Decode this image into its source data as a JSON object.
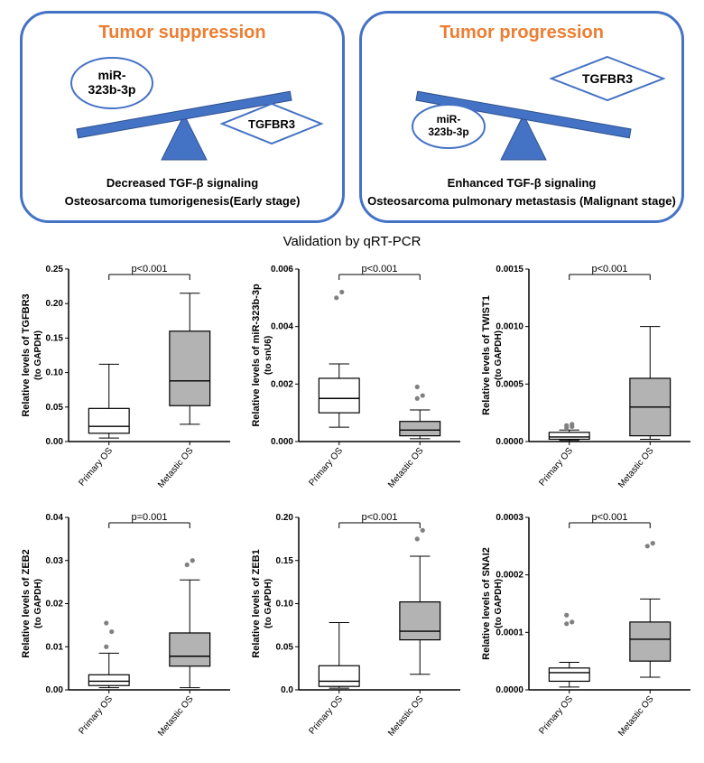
{
  "panels": {
    "left": {
      "title": "Tumor suppression",
      "title_color": "#ed7d31",
      "caption_line1": "Decreased TGF-β signaling",
      "caption_line2": "Osteosarcoma tumorigenesis(Early stage)",
      "ellipse_label_l1": "miR-",
      "ellipse_label_l2": "323b-3p",
      "diamond_label": "TGFBR3"
    },
    "right": {
      "title": "Tumor progression",
      "title_color": "#ed7d31",
      "caption_line1": "Enhanced TGF-β signaling",
      "caption_line2": "Osteosarcoma pulmonary metastasis (Malignant stage)",
      "ellipse_label_l1": "miR-",
      "ellipse_label_l2": "323b-3p",
      "diamond_label": "TGFBR3"
    },
    "shape_colors": {
      "border": "#4472c4",
      "triangle_fill": "#4472c4",
      "beam_fill": "#4472c4",
      "node_fill": "#ffffff"
    }
  },
  "grid_title": "Validation by qRT-PCR",
  "chart_common": {
    "x_categories": [
      "Primary OS",
      "Metastic OS"
    ],
    "box_colors": [
      "#ffffff",
      "#b3b3b3"
    ],
    "axis_color": "#000000",
    "outlier_color": "#808080",
    "median_color": "#000000",
    "tick_fontsize": 10,
    "label_fontsize": 11
  },
  "charts": [
    {
      "ylabel_line1": "Relative levels of TGFBR3",
      "ylabel_line2": "(to GAPDH)",
      "p_text": "p<0.001",
      "ylim": [
        0.0,
        0.25
      ],
      "yticks": [
        0.0,
        0.05,
        0.1,
        0.15,
        0.2,
        0.25
      ],
      "boxes": [
        {
          "min": 0.005,
          "q1": 0.012,
          "median": 0.022,
          "q3": 0.048,
          "max": 0.112,
          "outliers": []
        },
        {
          "min": 0.025,
          "q1": 0.052,
          "median": 0.088,
          "q3": 0.16,
          "max": 0.215,
          "outliers": []
        }
      ]
    },
    {
      "ylabel_line1": "Relative levels of  miR-323b-3p",
      "ylabel_line2": "(to snU6)",
      "p_text": "p<0.001",
      "ylim": [
        0.0,
        0.006
      ],
      "yticks": [
        0.0,
        0.002,
        0.004,
        0.006
      ],
      "boxes": [
        {
          "min": 0.0005,
          "q1": 0.001,
          "median": 0.0015,
          "q3": 0.0022,
          "max": 0.0027,
          "outliers": [
            0.005,
            0.0052
          ]
        },
        {
          "min": 0.0001,
          "q1": 0.0002,
          "median": 0.0004,
          "q3": 0.0007,
          "max": 0.0011,
          "outliers": [
            0.0015,
            0.0016,
            0.0019
          ]
        }
      ]
    },
    {
      "ylabel_line1": "Relative levels of TWIST1",
      "ylabel_line2": "(to GAPDH)",
      "p_text": "p<0.001",
      "ylim": [
        0.0,
        0.0015
      ],
      "yticks": [
        0.0,
        0.0005,
        0.001,
        0.0015
      ],
      "boxes": [
        {
          "min": 1e-05,
          "q1": 2e-05,
          "median": 4e-05,
          "q3": 8e-05,
          "max": 0.0001,
          "outliers": [
            0.00012,
            0.00013,
            0.00014,
            0.00015
          ]
        },
        {
          "min": 2e-05,
          "q1": 5e-05,
          "median": 0.0003,
          "q3": 0.00055,
          "max": 0.001,
          "outliers": []
        }
      ]
    },
    {
      "ylabel_line1": "Relative levels of ZEB2",
      "ylabel_line2": "(to GAPDH)",
      "p_text": "p=0.001",
      "ylim": [
        0.0,
        0.04
      ],
      "yticks": [
        0.0,
        0.01,
        0.02,
        0.03,
        0.04
      ],
      "boxes": [
        {
          "min": 0.0005,
          "q1": 0.001,
          "median": 0.002,
          "q3": 0.0035,
          "max": 0.0085,
          "outliers": [
            0.01,
            0.0135,
            0.0155
          ]
        },
        {
          "min": 0.0005,
          "q1": 0.0055,
          "median": 0.0078,
          "q3": 0.0132,
          "max": 0.0255,
          "outliers": [
            0.029,
            0.03
          ]
        }
      ]
    },
    {
      "ylabel_line1": "Relative levels of ZEB1",
      "ylabel_line2": "(to GAPDH)",
      "p_text": "p<0.001",
      "ylim": [
        0.0,
        0.2
      ],
      "yticks": [
        0.0,
        0.05,
        0.1,
        0.15,
        0.2
      ],
      "boxes": [
        {
          "min": 0.002,
          "q1": 0.004,
          "median": 0.01,
          "q3": 0.028,
          "max": 0.078,
          "outliers": []
        },
        {
          "min": 0.018,
          "q1": 0.058,
          "median": 0.068,
          "q3": 0.102,
          "max": 0.155,
          "outliers": [
            0.175,
            0.185
          ]
        }
      ]
    },
    {
      "ylabel_line1": "Relative levels of SNAI2",
      "ylabel_line2": "(to GAPDH)",
      "p_text": "p<0.001",
      "ylim": [
        0.0,
        0.0003
      ],
      "yticks": [
        0.0,
        0.0001,
        0.0002,
        0.0003
      ],
      "boxes": [
        {
          "min": 5e-06,
          "q1": 1.5e-05,
          "median": 3e-05,
          "q3": 3.8e-05,
          "max": 4.8e-05,
          "outliers": [
            0.000115,
            0.000118,
            0.00013
          ]
        },
        {
          "min": 2.2e-05,
          "q1": 5e-05,
          "median": 8.8e-05,
          "q3": 0.000118,
          "max": 0.000158,
          "outliers": [
            0.00025,
            0.000255
          ]
        }
      ]
    }
  ]
}
